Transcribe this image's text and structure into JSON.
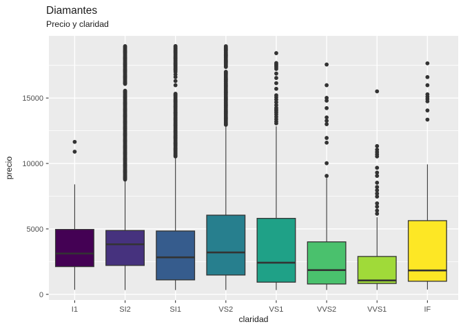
{
  "header": {
    "title": "Diamantes",
    "subtitle": "Precio y claridad"
  },
  "chart_data": {
    "type": "boxplot",
    "title": "Diamantes",
    "subtitle": "Precio y claridad",
    "xlabel": "claridad",
    "ylabel": "precio",
    "categories": [
      "I1",
      "SI2",
      "SI1",
      "VS2",
      "VS1",
      "VVS2",
      "VVS1",
      "IF"
    ],
    "y_ticks": [
      0,
      5000,
      10000,
      15000
    ],
    "y_minor_ticks": [
      2500,
      7500,
      12500,
      17500
    ],
    "ylim": [
      -430,
      19750
    ],
    "grid": true,
    "legend": "none",
    "series": [
      {
        "category": "I1",
        "color": "#440154",
        "min": 345,
        "q1": 2120,
        "median": 3120,
        "q3": 4960,
        "whisker_high": 8400,
        "outliers": [
          10900,
          11650
        ],
        "outlier_bands": []
      },
      {
        "category": "SI2",
        "color": "#46327E",
        "min": 326,
        "q1": 2210,
        "median": 3825,
        "q3": 4880,
        "whisker_high": 8680,
        "outliers": [],
        "outlier_bands": [
          {
            "lo": 8750,
            "hi": 15570,
            "n": 108
          },
          {
            "lo": 16060,
            "hi": 18950,
            "n": 46
          }
        ]
      },
      {
        "category": "SI1",
        "color": "#365C8D",
        "min": 326,
        "q1": 1105,
        "median": 2825,
        "q3": 4840,
        "whisker_high": 10470,
        "outliers": [
          15980,
          16300,
          16600,
          16800,
          17000
        ],
        "outlier_bands": [
          {
            "lo": 10520,
            "hi": 15350,
            "n": 78
          },
          {
            "lo": 17120,
            "hi": 18960,
            "n": 30
          }
        ]
      },
      {
        "category": "VS2",
        "color": "#277F8E",
        "min": 334,
        "q1": 1475,
        "median": 3200,
        "q3": 6050,
        "whisker_high": 12840,
        "outliers": [],
        "outlier_bands": [
          {
            "lo": 12950,
            "hi": 17030,
            "n": 62
          },
          {
            "lo": 17390,
            "hi": 18960,
            "n": 26
          }
        ]
      },
      {
        "category": "VS1",
        "color": "#1FA187",
        "min": 327,
        "q1": 930,
        "median": 2420,
        "q3": 5805,
        "whisker_high": 12840,
        "outliers": [
          18430
        ],
        "outlier_bands": [
          {
            "lo": 13100,
            "hi": 14160,
            "n": 8
          },
          {
            "lo": 14300,
            "hi": 15200,
            "n": 6
          },
          {
            "lo": 15730,
            "hi": 16800,
            "n": 4
          },
          {
            "lo": 17200,
            "hi": 17700,
            "n": 5
          }
        ]
      },
      {
        "category": "VVS2",
        "color": "#4AC16D",
        "min": 336,
        "q1": 790,
        "median": 1850,
        "q3": 4010,
        "whisker_high": 8890,
        "outliers": [
          9050,
          10020,
          11590,
          11950,
          13000,
          13260,
          13520,
          14230,
          14800,
          15010,
          15980,
          17560
        ],
        "outlier_bands": []
      },
      {
        "category": "VVS1",
        "color": "#A0DA39",
        "min": 336,
        "q1": 830,
        "median": 1060,
        "q3": 2895,
        "whisker_high": 5890,
        "outliers": [
          6160,
          6400,
          6700,
          6950,
          7470,
          7700,
          7950,
          8200,
          8530,
          9050,
          9300,
          9670,
          10540,
          10700,
          10870,
          11050,
          11330,
          15510
        ],
        "outlier_bands": []
      },
      {
        "category": "IF",
        "color": "#FDE725",
        "min": 369,
        "q1": 1000,
        "median": 1825,
        "q3": 5630,
        "whisker_high": 9930,
        "outliers": [
          13350,
          14050,
          14750,
          14930,
          15100,
          15280,
          15980,
          16600,
          17650
        ],
        "outlier_bands": []
      }
    ]
  },
  "style": {
    "panel_bg": "#EBEBEB",
    "grid_color": "#FFFFFF",
    "box_outline": "#333333",
    "median_color": "#333333",
    "whisker_color": "#333333",
    "outlier_color": "#333333",
    "axis_text_color": "#4D4D4D",
    "axis_title_color": "#1A1A1A",
    "tick_mark_color": "#333333",
    "title_color": "#1A1A1A"
  }
}
